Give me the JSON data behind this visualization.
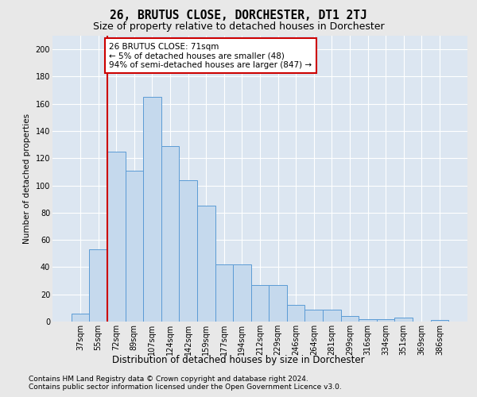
{
  "title": "26, BRUTUS CLOSE, DORCHESTER, DT1 2TJ",
  "subtitle": "Size of property relative to detached houses in Dorchester",
  "xlabel": "Distribution of detached houses by size in Dorchester",
  "ylabel": "Number of detached properties",
  "categories": [
    "37sqm",
    "55sqm",
    "72sqm",
    "89sqm",
    "107sqm",
    "124sqm",
    "142sqm",
    "159sqm",
    "177sqm",
    "194sqm",
    "212sqm",
    "229sqm",
    "246sqm",
    "264sqm",
    "281sqm",
    "299sqm",
    "316sqm",
    "334sqm",
    "351sqm",
    "369sqm",
    "386sqm"
  ],
  "values": [
    6,
    53,
    125,
    111,
    165,
    129,
    104,
    85,
    42,
    42,
    27,
    27,
    12,
    9,
    9,
    4,
    2,
    2,
    3,
    0,
    1
  ],
  "bar_color": "#c5d9ed",
  "bar_edge_color": "#5b9bd5",
  "bar_linewidth": 0.7,
  "annotation_text": "26 BRUTUS CLOSE: 71sqm\n← 5% of detached houses are smaller (48)\n94% of semi-detached houses are larger (847) →",
  "annotation_box_edge_color": "#cc0000",
  "annotation_box_face_color": "#ffffff",
  "vline_color": "#cc0000",
  "vline_x_index": 2,
  "ylim": [
    0,
    210
  ],
  "yticks": [
    0,
    20,
    40,
    60,
    80,
    100,
    120,
    140,
    160,
    180,
    200
  ],
  "background_color": "#dce6f1",
  "grid_color": "#ffffff",
  "footer1": "Contains HM Land Registry data © Crown copyright and database right 2024.",
  "footer2": "Contains public sector information licensed under the Open Government Licence v3.0.",
  "title_fontsize": 10.5,
  "subtitle_fontsize": 9,
  "xlabel_fontsize": 8.5,
  "ylabel_fontsize": 7.5,
  "tick_fontsize": 7,
  "annotation_fontsize": 7.5,
  "footer_fontsize": 6.5
}
